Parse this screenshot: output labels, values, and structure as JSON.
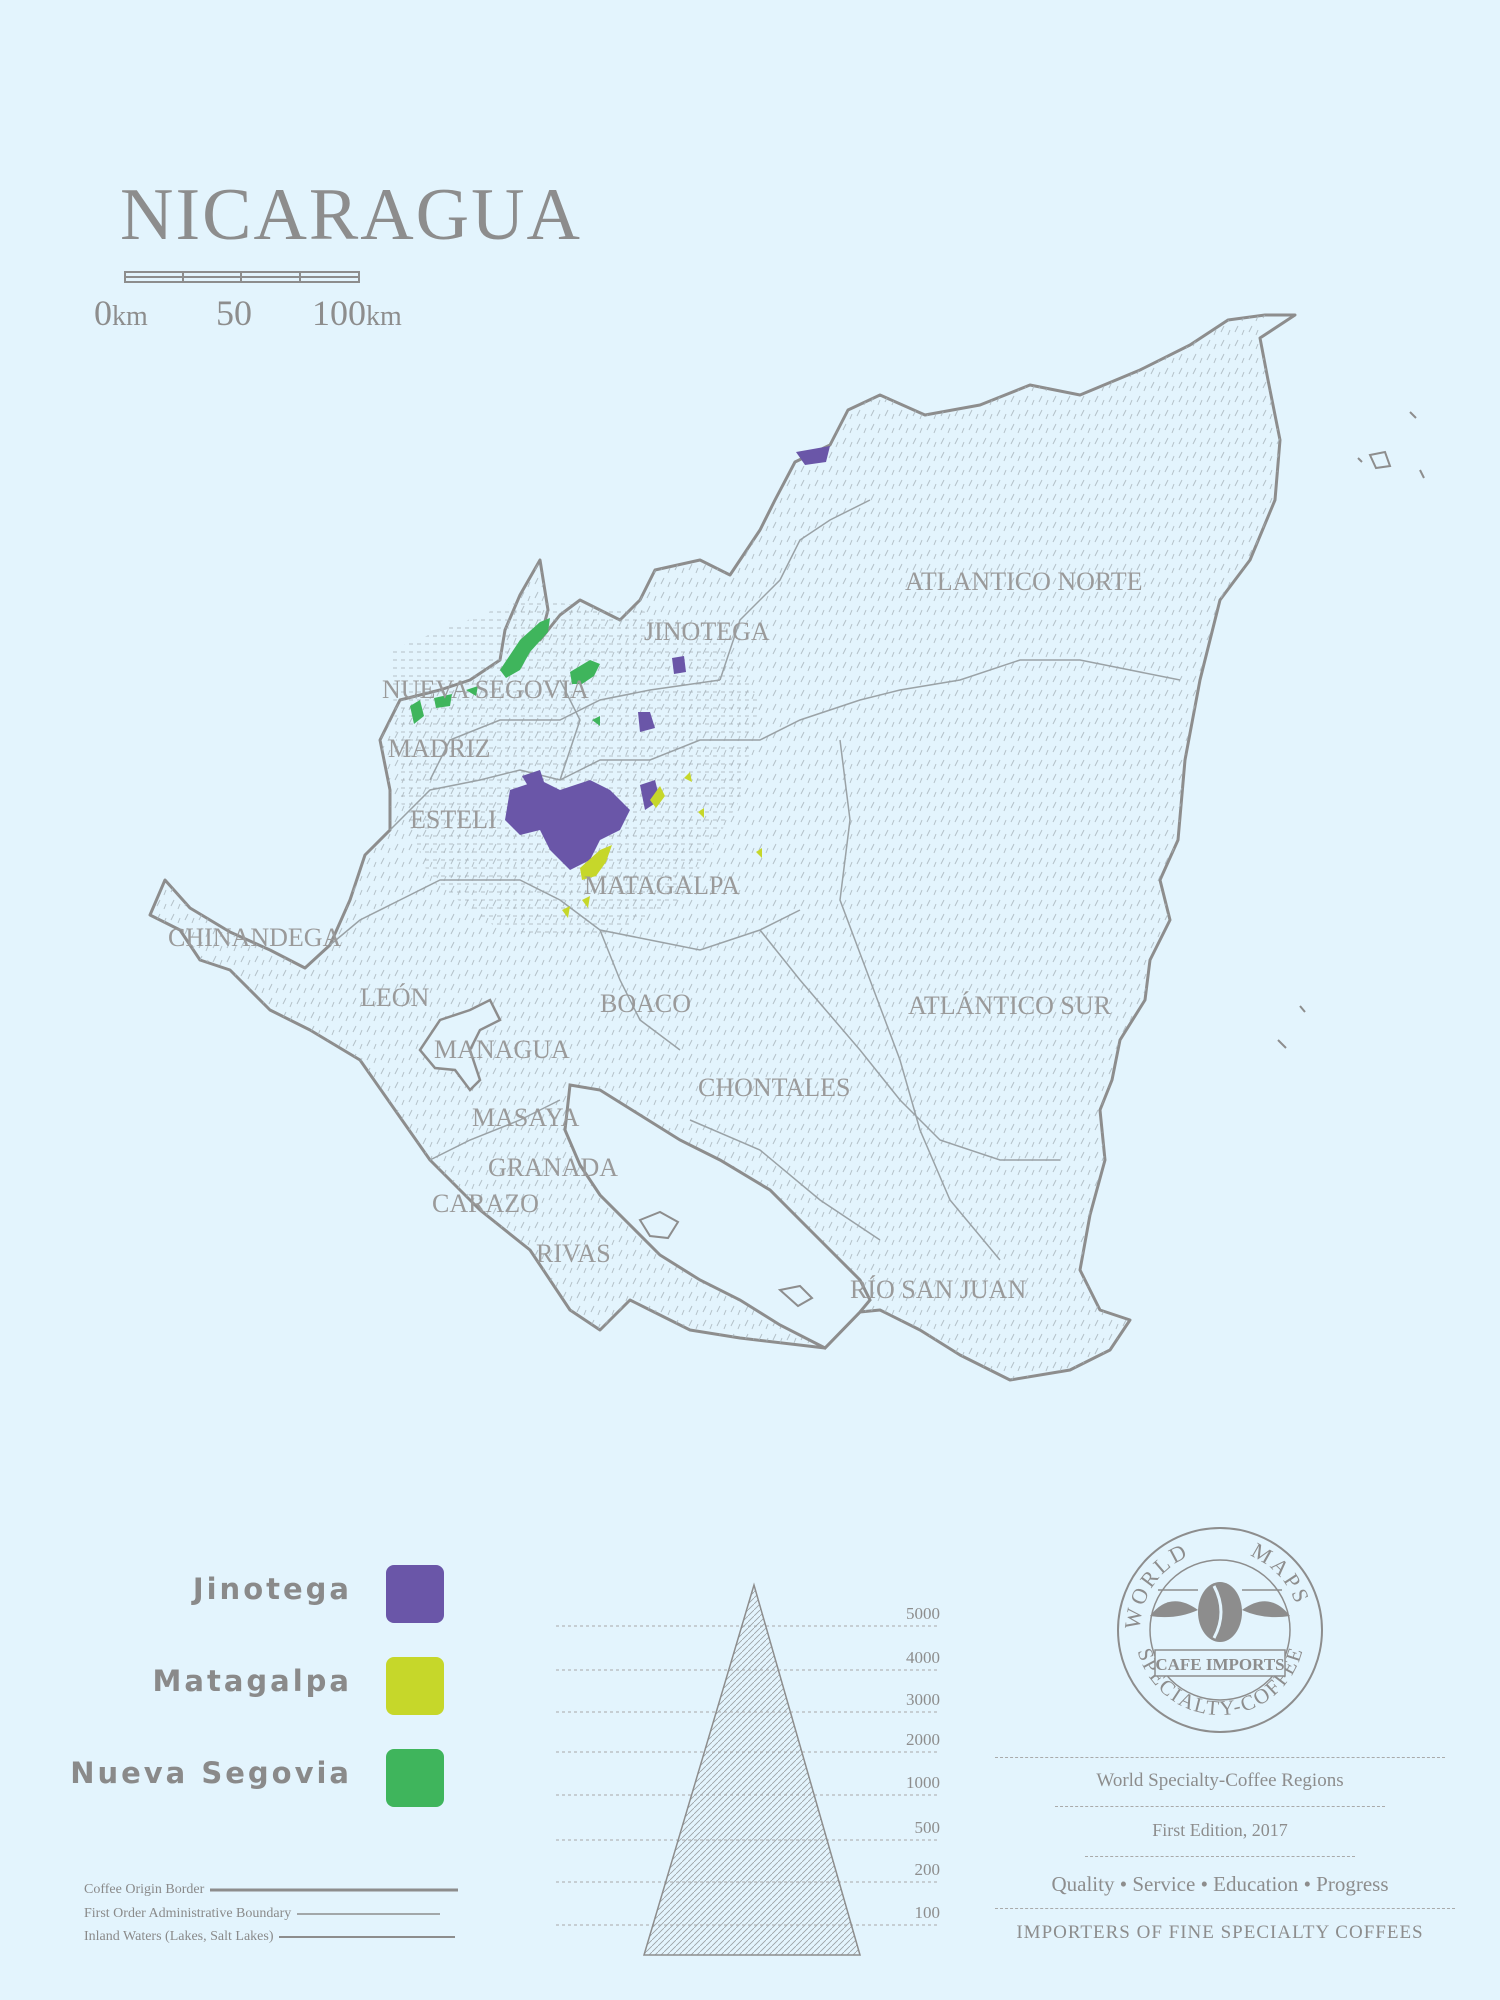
{
  "title": "NICARAGUA",
  "scale": {
    "zero": "0",
    "mid": "50",
    "end": "100",
    "unit": "km"
  },
  "regions": {
    "atlantico_norte": "ATLANTICO NORTE",
    "jinotega": "JINOTEGA",
    "nueva_segovia": "NUEVA SEGOVIA",
    "madriz": "MADRIZ",
    "esteli": "ESTELI",
    "matagalpa": "MATAGALPA",
    "chinandega": "CHINANDEGA",
    "leon": "LEÓN",
    "boaco": "BOACO",
    "atlantico_sur": "ATLÁNTICO SUR",
    "managua": "MANAGUA",
    "chontales": "CHONTALES",
    "masaya": "MASAYA",
    "granada": "GRANADA",
    "carazo": "CARAZO",
    "rivas": "RIVAS",
    "rio_san_juan": "RÍO SAN JUAN"
  },
  "legend": [
    {
      "name": "Jinotega",
      "color": "#6a56a8"
    },
    {
      "name": "Matagalpa",
      "color": "#c6d72a"
    },
    {
      "name": "Nueva Segovia",
      "color": "#3fb55c"
    }
  ],
  "line_key": {
    "coffee_border": "Coffee Origin Border",
    "admin_boundary": "First Order Administrative Boundary",
    "inland_waters": "Inland Waters (Lakes, Salt Lakes)"
  },
  "altitude_levels": [
    "5000",
    "4000",
    "3000",
    "2000",
    "1000",
    "500",
    "200",
    "100"
  ],
  "seal": {
    "top_left": "WORLD",
    "top_right": "MAPS",
    "banner": "CAFE IMPORTS",
    "bottom": "SPECIALTY-COFFEE"
  },
  "info": {
    "series": "World Specialty-Coffee Regions",
    "edition": "First Edition, 2017",
    "values": [
      "Quality",
      "Service",
      "Education",
      "Progress"
    ],
    "separator": "•",
    "tagline": "IMPORTERS OF FINE SPECIALTY COFFEES"
  },
  "colors": {
    "background": "#e3f4fd",
    "outline": "#8d8d8d"
  }
}
